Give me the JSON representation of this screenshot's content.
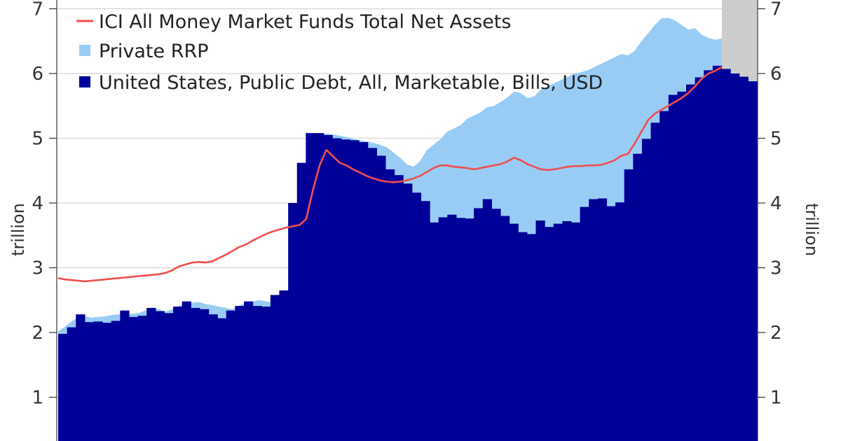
{
  "chart_data": {
    "type": "area",
    "y_axis_label_left": "trillion",
    "y_axis_label_right": "trillion",
    "ylim": [
      0,
      7
    ],
    "y_ticks": [
      1,
      2,
      3,
      4,
      5,
      6,
      7
    ],
    "grid": true,
    "legend_position": "top-left",
    "forecast_band_color": "#cccccc",
    "series": [
      {
        "name": "ICI All Money Market Funds Total Net Assets",
        "kind": "line",
        "color": "#f04e4e",
        "values": [
          2.84,
          2.82,
          2.81,
          2.8,
          2.79,
          2.8,
          2.81,
          2.82,
          2.83,
          2.84,
          2.85,
          2.86,
          2.87,
          2.88,
          2.89,
          2.9,
          2.92,
          2.96,
          3.02,
          3.05,
          3.08,
          3.09,
          3.08,
          3.1,
          3.15,
          3.2,
          3.26,
          3.32,
          3.36,
          3.42,
          3.47,
          3.52,
          3.56,
          3.59,
          3.62,
          3.64,
          3.66,
          3.75,
          4.2,
          4.58,
          4.82,
          4.72,
          4.62,
          4.58,
          4.52,
          4.47,
          4.42,
          4.38,
          4.35,
          4.33,
          4.32,
          4.33,
          4.35,
          4.38,
          4.42,
          4.48,
          4.54,
          4.58,
          4.58,
          4.56,
          4.55,
          4.54,
          4.52,
          4.54,
          4.56,
          4.58,
          4.6,
          4.64,
          4.7,
          4.66,
          4.6,
          4.56,
          4.52,
          4.51,
          4.52,
          4.54,
          4.56,
          4.57,
          4.57,
          4.58,
          4.58,
          4.59,
          4.62,
          4.66,
          4.73,
          4.76,
          4.92,
          5.1,
          5.28,
          5.38,
          5.44,
          5.5,
          5.56,
          5.62,
          5.7,
          5.8,
          5.92,
          6.0,
          6.04,
          6.1
        ]
      },
      {
        "name": "Private RRP",
        "kind": "area",
        "color": "#99ccf5",
        "values": [
          2.02,
          2.09,
          2.17,
          2.23,
          2.25,
          2.23,
          2.24,
          2.25,
          2.27,
          2.28,
          2.27,
          2.29,
          2.3,
          2.34,
          2.39,
          2.36,
          2.32,
          2.36,
          2.41,
          2.43,
          2.46,
          2.47,
          2.44,
          2.42,
          2.4,
          2.38,
          2.36,
          2.42,
          2.45,
          2.48,
          2.5,
          2.48,
          2.46,
          2.47,
          2.52,
          2.56,
          2.62,
          4.0,
          4.62,
          5.08,
          5.07,
          5.06,
          5.04,
          5.02,
          4.99,
          4.97,
          4.95,
          4.93,
          4.9,
          4.86,
          4.78,
          4.7,
          4.6,
          4.56,
          4.65,
          4.82,
          4.9,
          4.98,
          5.1,
          5.15,
          5.2,
          5.3,
          5.35,
          5.4,
          5.48,
          5.5,
          5.56,
          5.63,
          5.72,
          5.7,
          5.62,
          5.65,
          5.75,
          5.8,
          5.85,
          5.9,
          5.95,
          6.0,
          6.02,
          6.05,
          6.1,
          6.15,
          6.2,
          6.25,
          6.3,
          6.28,
          6.35,
          6.5,
          6.62,
          6.75,
          6.85,
          6.86,
          6.82,
          6.75,
          6.68,
          6.7,
          6.6,
          6.55,
          6.52,
          6.54
        ]
      },
      {
        "name": "United States, Public Debt, All, Marketable, Bills, USD",
        "kind": "bar",
        "color": "#000099",
        "values": [
          1.98,
          2.08,
          2.28,
          2.16,
          2.17,
          2.15,
          2.18,
          2.34,
          2.24,
          2.26,
          2.38,
          2.33,
          2.3,
          2.4,
          2.48,
          2.38,
          2.36,
          2.28,
          2.22,
          2.34,
          2.41,
          2.48,
          2.41,
          2.4,
          2.58,
          2.65,
          4.0,
          4.62,
          5.08,
          5.08,
          5.05,
          5.0,
          4.98,
          4.97,
          4.94,
          4.85,
          4.73,
          4.52,
          4.43,
          4.3,
          4.16,
          4.03,
          3.7,
          3.78,
          3.82,
          3.77,
          3.76,
          3.92,
          4.06,
          3.91,
          3.8,
          3.68,
          3.55,
          3.52,
          3.73,
          3.63,
          3.68,
          3.72,
          3.7,
          3.94,
          4.06,
          4.07,
          3.95,
          4.01,
          4.52,
          4.76,
          4.99,
          5.24,
          5.42,
          5.67,
          5.72,
          5.83,
          5.94,
          6.05,
          6.12,
          6.07,
          6.0,
          5.95,
          5.88
        ]
      }
    ]
  }
}
